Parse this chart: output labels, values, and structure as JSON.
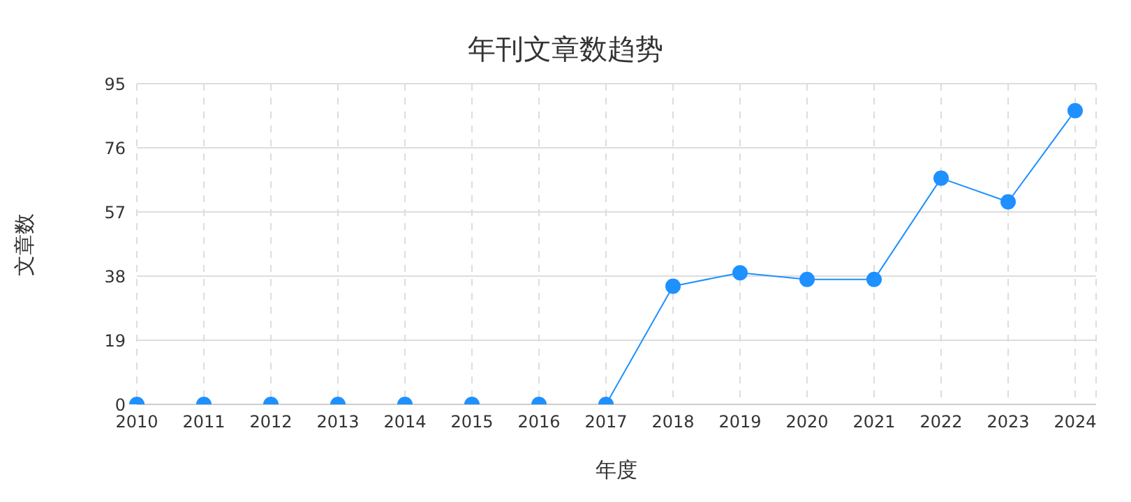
{
  "chart_data": {
    "type": "line",
    "title": "年刊文章数趋势",
    "xlabel": "年度",
    "ylabel": "文章数",
    "categories": [
      "2010",
      "2011",
      "2012",
      "2013",
      "2014",
      "2015",
      "2016",
      "2017",
      "2018",
      "2019",
      "2020",
      "2021",
      "2022",
      "2023",
      "2024"
    ],
    "series": [
      {
        "color": "#1e90ff",
        "values": [
          0,
          0,
          0,
          0,
          0,
          0,
          0,
          0,
          35,
          39,
          37,
          37,
          67,
          60,
          87
        ]
      }
    ],
    "ylim": [
      0,
      95
    ],
    "yticks": [
      0,
      19,
      38,
      57,
      76,
      95
    ],
    "grid": true,
    "marker": "circle",
    "line_style": "solid"
  }
}
